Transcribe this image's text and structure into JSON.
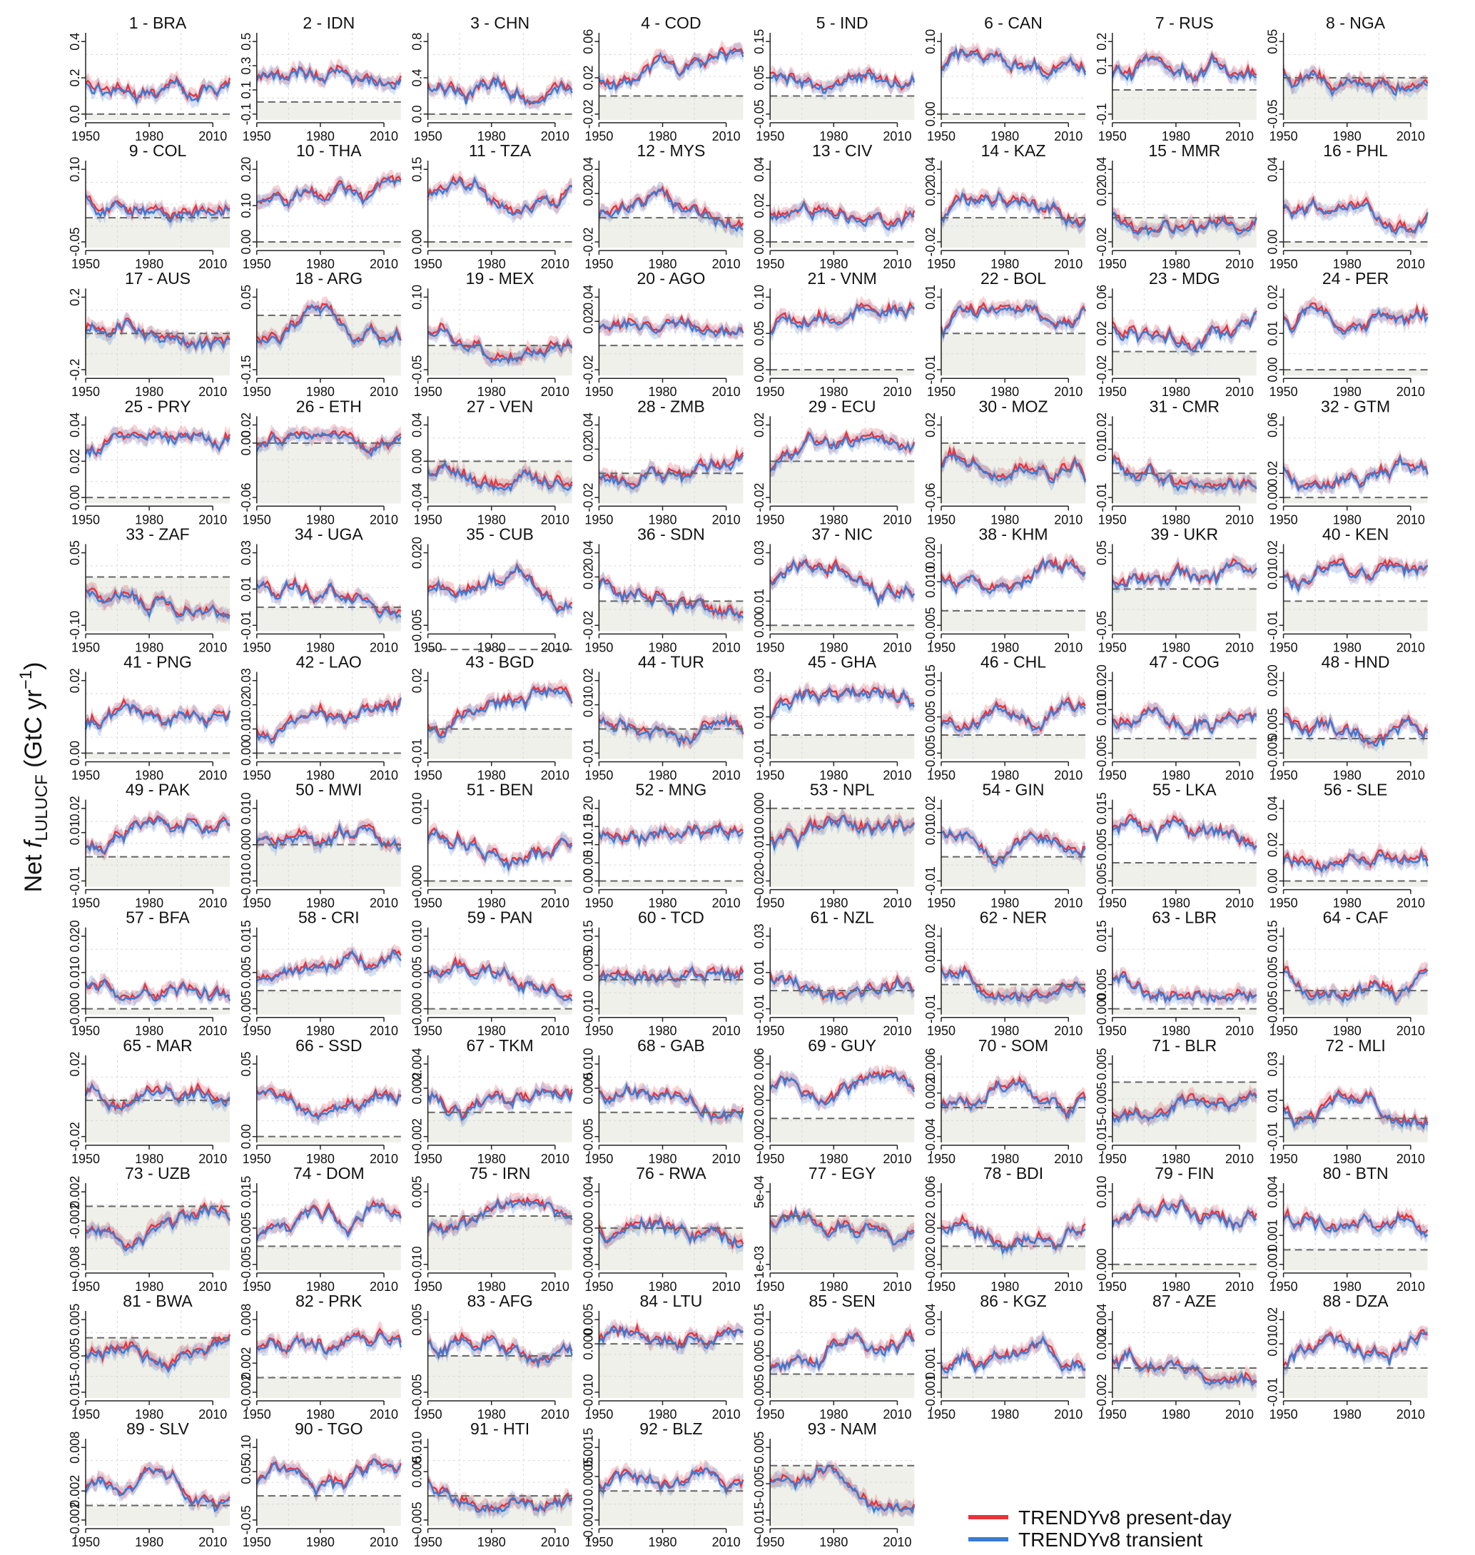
{
  "figure": {
    "ylabel": {
      "prefix": "Net ",
      "f": "f",
      "sub": "LULUCF",
      "unit": " (GtC yr",
      "sup": "−1",
      "close": ")"
    },
    "x_ticks": [
      "1950",
      "1980",
      "2010"
    ]
  },
  "legend": {
    "items": [
      {
        "label": "TRENDYv8 present-day",
        "color": "#e8333b"
      },
      {
        "label": "TRENDYv8 transient",
        "color": "#3a7bd5"
      }
    ]
  },
  "colors": {
    "present_day": "#e8333b",
    "transient": "#3a7bd5",
    "overlap": "#6f5fa0",
    "negative_bg": "#eef0e9",
    "zero_line": "#666666"
  },
  "chart_data": {
    "type": "line",
    "x_range": [
      1950,
      2018
    ],
    "panels": [
      {
        "title": "1 - BRA",
        "yticks": [
          "0.0",
          "0.2",
          "0.4"
        ]
      },
      {
        "title": "2 - IDN",
        "yticks": [
          "-0.1",
          "0.1",
          "0.3",
          "0.5"
        ]
      },
      {
        "title": "3 - CHN",
        "yticks": [
          "0.0",
          "0.4",
          "0.8"
        ]
      },
      {
        "title": "4 - COD",
        "yticks": [
          "-0.02",
          "0.02",
          "0.06"
        ]
      },
      {
        "title": "5 - IND",
        "yticks": [
          "-0.05",
          "0.05",
          "0.15"
        ]
      },
      {
        "title": "6 - CAN",
        "yticks": [
          "0.00",
          "0.10"
        ]
      },
      {
        "title": "7 - RUS",
        "yticks": [
          "-0.1",
          "0.1",
          "0.2"
        ]
      },
      {
        "title": "8 - NGA",
        "yticks": [
          "-0.05",
          "0.05"
        ]
      },
      {
        "title": "9 - COL",
        "yticks": [
          "-0.05",
          "0.10"
        ]
      },
      {
        "title": "10 - THA",
        "yticks": [
          "0.00",
          "0.10",
          "0.20"
        ]
      },
      {
        "title": "11 - TZA",
        "yticks": [
          "0.00",
          "0.15"
        ]
      },
      {
        "title": "12 - MYS",
        "yticks": [
          "-0.02",
          "0.02",
          "0.04"
        ]
      },
      {
        "title": "13 - CIV",
        "yticks": [
          "0.00",
          "0.02",
          "0.04"
        ]
      },
      {
        "title": "14 - KAZ",
        "yticks": [
          "-0.02",
          "0.02",
          "0.04"
        ]
      },
      {
        "title": "15 - MMR",
        "yticks": [
          "-0.02",
          "0.02",
          "0.04"
        ]
      },
      {
        "title": "16 - PHL",
        "yticks": [
          "0.00",
          "0.04"
        ]
      },
      {
        "title": "17 - AUS",
        "yticks": [
          "-0.2",
          "0.2"
        ]
      },
      {
        "title": "18 - ARG",
        "yticks": [
          "-0.15",
          "0.05"
        ]
      },
      {
        "title": "19 - MEX",
        "yticks": [
          "-0.05",
          "0.10"
        ]
      },
      {
        "title": "20 - AGO",
        "yticks": [
          "-0.02",
          "0.02",
          "0.04"
        ]
      },
      {
        "title": "21 - VNM",
        "yticks": [
          "0.00",
          "0.05",
          "0.10"
        ]
      },
      {
        "title": "22 - BOL",
        "yticks": [
          "-0.01",
          "0.01"
        ]
      },
      {
        "title": "23 - MDG",
        "yticks": [
          "-0.02",
          "0.02",
          "0.06"
        ]
      },
      {
        "title": "24 - PER",
        "yticks": [
          "0.00",
          "0.01",
          "0.02"
        ]
      },
      {
        "title": "25 - PRY",
        "yticks": [
          "0.00",
          "0.02",
          "0.04"
        ]
      },
      {
        "title": "26 - ETH",
        "yticks": [
          "-0.06",
          "0.00",
          "0.02"
        ]
      },
      {
        "title": "27 - VEN",
        "yticks": [
          "-0.04",
          "0.00",
          "0.04"
        ]
      },
      {
        "title": "28 - ZMB",
        "yticks": [
          "-0.02",
          "0.02",
          "0.04"
        ]
      },
      {
        "title": "29 - ECU",
        "yticks": [
          "-0.02",
          "0.02"
        ]
      },
      {
        "title": "30 - MOZ",
        "yticks": [
          "-0.06",
          "0.02"
        ]
      },
      {
        "title": "31 - CMR",
        "yticks": [
          "-0.01",
          "0.01",
          "0.02"
        ]
      },
      {
        "title": "32 - GTM",
        "yticks": [
          "0.00",
          "0.02",
          "0.06"
        ]
      },
      {
        "title": "33 - ZAF",
        "yticks": [
          "-0.10",
          "0.05"
        ]
      },
      {
        "title": "34 - UGA",
        "yticks": [
          "-0.01",
          "0.01",
          "0.03"
        ]
      },
      {
        "title": "35 - CUB",
        "yticks": [
          "0.005",
          "0.020"
        ]
      },
      {
        "title": "36 - SDN",
        "yticks": [
          "-0.02",
          "0.02",
          "0.04"
        ]
      },
      {
        "title": "37 - NIC",
        "yticks": [
          "0.00",
          "0.01",
          "0.03"
        ]
      },
      {
        "title": "38 - KHM",
        "yticks": [
          "-0.005",
          "0.010",
          "0.020"
        ]
      },
      {
        "title": "39 - UKR",
        "yticks": [
          "-0.05",
          "0.05"
        ]
      },
      {
        "title": "40 - KEN",
        "yticks": [
          "-0.01",
          "0.01",
          "0.02"
        ]
      },
      {
        "title": "41 - PNG",
        "yticks": [
          "0.00",
          "0.02"
        ]
      },
      {
        "title": "42 - LAO",
        "yticks": [
          "0.00",
          "0.01",
          "0.02",
          "0.03"
        ]
      },
      {
        "title": "43 - BGD",
        "yticks": [
          "-0.01",
          "0.02"
        ]
      },
      {
        "title": "44 - TUR",
        "yticks": [
          "-0.01",
          "0.01",
          "0.02"
        ]
      },
      {
        "title": "45 - GHA",
        "yticks": [
          "-0.01",
          "0.01",
          "0.03"
        ]
      },
      {
        "title": "46 - CHL",
        "yticks": [
          "-0.005",
          "0.005",
          "0.015"
        ]
      },
      {
        "title": "47 - COG",
        "yticks": [
          "-0.005",
          "0.010",
          "0.020"
        ]
      },
      {
        "title": "48 - HND",
        "yticks": [
          "-0.005",
          "0.005",
          "0.020"
        ]
      },
      {
        "title": "49 - PAK",
        "yticks": [
          "-0.01",
          "0.01",
          "0.02"
        ]
      },
      {
        "title": "50 - MWI",
        "yticks": [
          "-0.010",
          "0.000",
          "0.010"
        ]
      },
      {
        "title": "51 - BEN",
        "yticks": [
          "0.000",
          "0.010"
        ]
      },
      {
        "title": "52 - MNG",
        "yticks": [
          "0.00",
          "0.05",
          "0.10",
          "0.15",
          "0.20"
        ]
      },
      {
        "title": "53 - NPL",
        "yticks": [
          "-0.020",
          "-0.010",
          "0.000"
        ]
      },
      {
        "title": "54 - GIN",
        "yticks": [
          "-0.01",
          "0.01",
          "0.02"
        ]
      },
      {
        "title": "55 - LKA",
        "yticks": [
          "-0.005",
          "0.005",
          "0.015"
        ]
      },
      {
        "title": "56 - SLE",
        "yticks": [
          "0.00",
          "0.02",
          "0.04"
        ]
      },
      {
        "title": "57 - BFA",
        "yticks": [
          "0.000",
          "0.010",
          "0.020"
        ]
      },
      {
        "title": "58 - CRI",
        "yticks": [
          "-0.005",
          "0.005",
          "0.015"
        ]
      },
      {
        "title": "59 - PAN",
        "yticks": [
          "0.000",
          "0.005",
          "0.010"
        ]
      },
      {
        "title": "60 - TCD",
        "yticks": [
          "-0.010",
          "0.005",
          "0.015"
        ]
      },
      {
        "title": "61 - NZL",
        "yticks": [
          "-0.01",
          "0.01",
          "0.03"
        ]
      },
      {
        "title": "62 - NER",
        "yticks": [
          "-0.01",
          "0.01",
          "0.02"
        ]
      },
      {
        "title": "63 - LBR",
        "yticks": [
          "0.000",
          "0.005",
          "0.015"
        ]
      },
      {
        "title": "64 - CAF",
        "yticks": [
          "-0.005",
          "0.005",
          "0.015"
        ]
      },
      {
        "title": "65 - MAR",
        "yticks": [
          "-0.02",
          "0.02"
        ]
      },
      {
        "title": "66 - SSD",
        "yticks": [
          "0.00",
          "0.05"
        ]
      },
      {
        "title": "67 - TKM",
        "yticks": [
          "-0.002",
          "0.002",
          "0.004"
        ]
      },
      {
        "title": "68 - GAB",
        "yticks": [
          "-0.005",
          "0.005",
          "0.010"
        ]
      },
      {
        "title": "69 - GUY",
        "yticks": [
          "-0.002",
          "0.002",
          "0.006"
        ]
      },
      {
        "title": "70 - SOM",
        "yticks": [
          "-0.004",
          "0.002",
          "0.006"
        ]
      },
      {
        "title": "71 - BLR",
        "yticks": [
          "-0.015",
          "-0.005",
          "0.005"
        ]
      },
      {
        "title": "72 - MLI",
        "yticks": [
          "-0.01",
          "0.01",
          "0.03"
        ]
      },
      {
        "title": "73 - UZB",
        "yticks": [
          "-0.008",
          "-0.002",
          "0.002"
        ]
      },
      {
        "title": "74 - DOM",
        "yticks": [
          "-0.005",
          "0.005",
          "0.015"
        ]
      },
      {
        "title": "75 - IRN",
        "yticks": [
          "-0.010",
          "0.005"
        ]
      },
      {
        "title": "76 - RWA",
        "yticks": [
          "-0.004",
          "0.000",
          "0.004"
        ]
      },
      {
        "title": "77 - EGY",
        "yticks": [
          "-1e-03",
          "5e-04"
        ]
      },
      {
        "title": "78 - BDI",
        "yticks": [
          "-0.002",
          "0.002",
          "0.006"
        ]
      },
      {
        "title": "79 - FIN",
        "yticks": [
          "0.000",
          "0.010"
        ]
      },
      {
        "title": "80 - BTN",
        "yticks": [
          "-0.001",
          "0.001",
          "0.004"
        ]
      },
      {
        "title": "81 - BWA",
        "yticks": [
          "-0.015",
          "-0.005",
          "0.005"
        ]
      },
      {
        "title": "82 - PRK",
        "yticks": [
          "-0.002",
          "0.002",
          "0.008"
        ]
      },
      {
        "title": "83 - AFG",
        "yticks": [
          "-0.005",
          "0.005"
        ]
      },
      {
        "title": "84 - LTU",
        "yticks": [
          "-0.010",
          "0.000",
          "0.005"
        ]
      },
      {
        "title": "85 - SEN",
        "yticks": [
          "-0.005",
          "0.005",
          "0.015"
        ]
      },
      {
        "title": "86 - KGZ",
        "yticks": [
          "-0.001",
          "0.001",
          "0.004"
        ]
      },
      {
        "title": "87 - AZE",
        "yticks": [
          "-0.002",
          "0.002",
          "0.004"
        ]
      },
      {
        "title": "88 - DZA",
        "yticks": [
          "-0.01",
          "0.01",
          "0.02"
        ]
      },
      {
        "title": "89 - SLV",
        "yticks": [
          "-0.002",
          "0.002",
          "0.008"
        ]
      },
      {
        "title": "90 - TGO",
        "yticks": [
          "-0.05",
          "0.05",
          "0.10"
        ]
      },
      {
        "title": "91 - HTI",
        "yticks": [
          "-0.005",
          "0.005",
          "0.010"
        ]
      },
      {
        "title": "92 - BLZ",
        "yticks": [
          "-0.0010",
          "0.0005",
          "0.0015"
        ]
      },
      {
        "title": "93 - NAM",
        "yticks": [
          "-0.015",
          "-0.005",
          "0.005"
        ]
      }
    ],
    "series": [
      {
        "name": "TRENDYv8 present-day"
      },
      {
        "name": "TRENDYv8 transient"
      }
    ]
  }
}
